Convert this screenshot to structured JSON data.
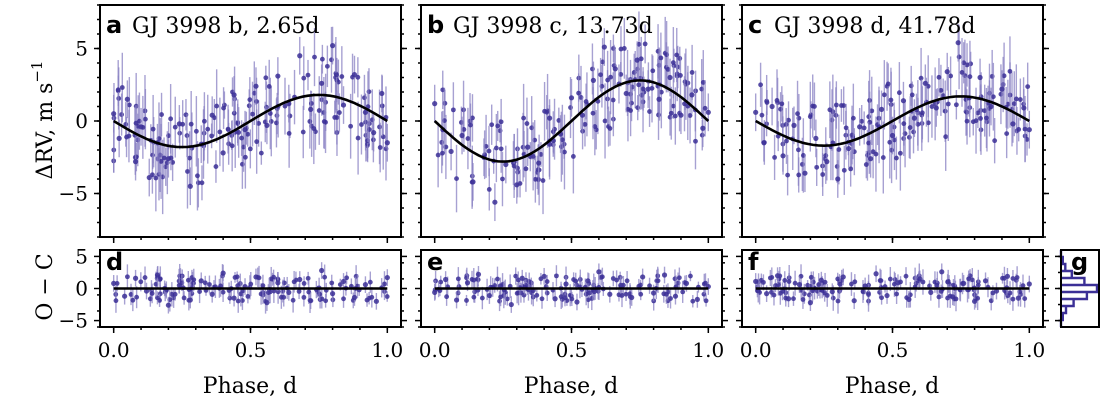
{
  "colors": {
    "points": "#3b2f96",
    "errorbars": "#8a82c4",
    "model": "#000000"
  },
  "labels": {
    "ylabel_top": "ΔRV, m s",
    "ylabel_top_exp": "−1",
    "ylabel_bottom": "O − C",
    "xlabel": "Phase, d"
  },
  "chart_data": [
    {
      "type": "scatter",
      "panel": "a",
      "title": "GJ 3998 b, 2.65d",
      "xlim": [
        -0.05,
        1.05
      ],
      "ylim": [
        -8,
        8
      ],
      "xticks": [
        "0.0",
        "0.5",
        "1.0"
      ],
      "yticks": [
        "5",
        "0",
        "−5"
      ],
      "model": {
        "kind": "sinusoid",
        "amplitude": 1.8
      },
      "x": [
        0.0,
        0.02,
        0.05,
        0.08,
        0.1,
        0.13,
        0.16,
        0.2,
        0.24,
        0.28,
        0.32,
        0.36,
        0.4,
        0.44,
        0.48,
        0.52,
        0.56,
        0.6,
        0.64,
        0.68,
        0.72,
        0.76,
        0.8,
        0.84,
        0.88,
        0.92,
        0.95,
        0.98,
        1.0
      ],
      "y": [
        0.5,
        -1.2,
        1.5,
        -2.8,
        -0.4,
        -3.9,
        -1.5,
        -2.6,
        -0.2,
        -4.5,
        -1.6,
        0.4,
        -2.2,
        1.8,
        -0.6,
        2.4,
        -0.3,
        3.1,
        1.2,
        4.5,
        0.8,
        2.6,
        5.2,
        1.1,
        3.2,
        0.6,
        -0.8,
        1.9,
        -1.5
      ]
    },
    {
      "type": "scatter",
      "panel": "b",
      "title": "GJ 3998 c, 13.73d",
      "xlim": [
        -0.05,
        1.05
      ],
      "ylim": [
        -8,
        8
      ],
      "xticks": [
        "0.0",
        "0.5",
        "1.0"
      ],
      "model": {
        "kind": "sinusoid",
        "amplitude": 2.8
      },
      "x": [
        0.0,
        0.03,
        0.06,
        0.1,
        0.14,
        0.18,
        0.22,
        0.26,
        0.3,
        0.34,
        0.38,
        0.42,
        0.46,
        0.5,
        0.54,
        0.58,
        0.62,
        0.66,
        0.7,
        0.74,
        0.78,
        0.82,
        0.86,
        0.9,
        0.94,
        0.98,
        1.0
      ],
      "y": [
        1.2,
        -0.6,
        -2.1,
        -1.0,
        -4.2,
        -2.5,
        -5.6,
        -3.0,
        -4.4,
        -1.8,
        -2.9,
        0.2,
        -0.9,
        1.6,
        0.4,
        2.8,
        5.1,
        3.6,
        1.9,
        4.2,
        2.2,
        1.5,
        3.0,
        0.4,
        1.8,
        -0.5,
        0.6
      ]
    },
    {
      "type": "scatter",
      "panel": "c",
      "title": "GJ 3998 d, 41.78d",
      "xlim": [
        -0.05,
        1.05
      ],
      "ylim": [
        -8,
        8
      ],
      "xticks": [
        "0.0",
        "0.5",
        "1.0"
      ],
      "model": {
        "kind": "sinusoid",
        "amplitude": 1.7
      },
      "x": [
        0.0,
        0.03,
        0.06,
        0.1,
        0.14,
        0.18,
        0.22,
        0.26,
        0.3,
        0.34,
        0.38,
        0.42,
        0.46,
        0.5,
        0.54,
        0.58,
        0.62,
        0.66,
        0.7,
        0.74,
        0.78,
        0.82,
        0.86,
        0.9,
        0.94,
        0.98,
        1.0
      ],
      "y": [
        0.6,
        -1.5,
        1.0,
        -2.4,
        -0.3,
        -3.6,
        -1.2,
        -2.8,
        -4.0,
        -1.9,
        -0.4,
        -2.6,
        0.8,
        -1.0,
        1.4,
        0.2,
        2.6,
        0.9,
        3.4,
        5.4,
        1.6,
        3.0,
        1.0,
        2.2,
        -0.2,
        0.9,
        -0.6
      ]
    },
    {
      "type": "scatter",
      "panel": "d",
      "xlim": [
        -0.05,
        1.05
      ],
      "ylim": [
        -6,
        6
      ],
      "xticks": [
        "0.0",
        "0.5",
        "1.0"
      ],
      "yticks": [
        "5",
        "0",
        "−5"
      ],
      "x": [
        0.0,
        0.04,
        0.08,
        0.12,
        0.16,
        0.2,
        0.24,
        0.28,
        0.32,
        0.36,
        0.4,
        0.44,
        0.48,
        0.52,
        0.56,
        0.6,
        0.64,
        0.68,
        0.72,
        0.76,
        0.8,
        0.84,
        0.88,
        0.92,
        0.96,
        1.0
      ],
      "y": [
        0.8,
        -1.2,
        1.6,
        -0.4,
        2.1,
        -2.6,
        0.5,
        -1.8,
        1.2,
        -0.9,
        2.4,
        -1.5,
        0.3,
        1.8,
        -2.2,
        0.9,
        -0.6,
        1.4,
        -1.9,
        2.8,
        -0.8,
        1.1,
        -1.4,
        0.6,
        -2.0,
        1.7
      ]
    },
    {
      "type": "scatter",
      "panel": "e",
      "xlim": [
        -0.05,
        1.05
      ],
      "ylim": [
        -6,
        6
      ],
      "xticks": [
        "0.0",
        "0.5",
        "1.0"
      ],
      "x": [
        0.0,
        0.04,
        0.08,
        0.12,
        0.16,
        0.2,
        0.24,
        0.28,
        0.32,
        0.36,
        0.4,
        0.44,
        0.48,
        0.52,
        0.56,
        0.6,
        0.64,
        0.68,
        0.72,
        0.76,
        0.8,
        0.84,
        0.88,
        0.92,
        0.96,
        1.0
      ],
      "y": [
        -0.6,
        1.4,
        -1.8,
        0.9,
        2.2,
        -1.1,
        0.4,
        -2.5,
        1.6,
        -0.3,
        1.9,
        -1.6,
        0.7,
        -2.1,
        1.2,
        2.6,
        -0.9,
        0.5,
        -1.4,
        1.8,
        -0.7,
        2.1,
        -1.2,
        0.8,
        -1.7,
        0.3
      ]
    },
    {
      "type": "scatter",
      "panel": "f",
      "xlim": [
        -0.05,
        1.05
      ],
      "ylim": [
        -6,
        6
      ],
      "xticks": [
        "0.0",
        "0.5",
        "1.0"
      ],
      "x": [
        0.0,
        0.04,
        0.08,
        0.12,
        0.16,
        0.2,
        0.24,
        0.28,
        0.32,
        0.36,
        0.4,
        0.44,
        0.48,
        0.52,
        0.56,
        0.6,
        0.64,
        0.68,
        0.72,
        0.76,
        0.8,
        0.84,
        0.88,
        0.92,
        0.96,
        1.0
      ],
      "y": [
        1.1,
        -0.8,
        2.0,
        -1.6,
        0.6,
        -2.2,
        1.3,
        -0.5,
        1.8,
        -1.9,
        0.4,
        2.3,
        -1.1,
        0.9,
        -1.7,
        1.5,
        -0.6,
        2.6,
        -1.3,
        0.8,
        -2.0,
        1.2,
        -0.4,
        1.9,
        -1.5,
        0.7
      ]
    },
    {
      "type": "bar",
      "panel": "g",
      "orientation": "horizontal",
      "ylim": [
        -6,
        6
      ],
      "categories": [
        "−5",
        "−4",
        "−3",
        "−2",
        "−1",
        "0",
        "1",
        "2",
        "3",
        "4",
        "5"
      ],
      "values": [
        0.0,
        0.05,
        0.12,
        0.3,
        0.65,
        1.0,
        0.72,
        0.35,
        0.14,
        0.05,
        0.0
      ]
    }
  ]
}
